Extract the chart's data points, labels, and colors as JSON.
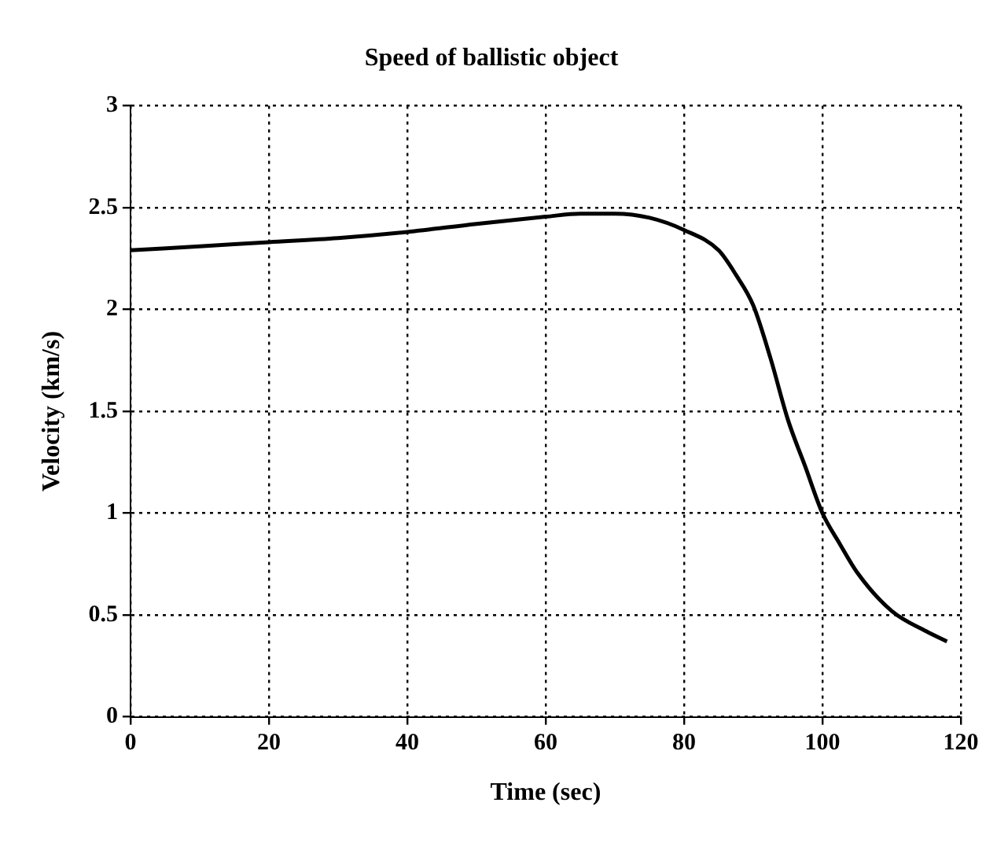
{
  "chart_data": {
    "type": "line",
    "title": "Speed of ballistic object",
    "xlabel": "Time (sec)",
    "ylabel": "Velocity (km/s)",
    "x": [
      0,
      10,
      20,
      30,
      40,
      50,
      60,
      65,
      70,
      75,
      80,
      85,
      87.5,
      90,
      92.5,
      95,
      97.5,
      100,
      102.5,
      105,
      110,
      115,
      118
    ],
    "series": [
      {
        "color": "#000000",
        "values": [
          2.29,
          2.31,
          2.33,
          2.35,
          2.38,
          2.42,
          2.455,
          2.47,
          2.47,
          2.45,
          2.39,
          2.29,
          2.17,
          2.02,
          1.76,
          1.46,
          1.23,
          1.0,
          0.85,
          0.71,
          0.52,
          0.42,
          0.37
        ]
      }
    ],
    "xlim": [
      0,
      120
    ],
    "xticks": [
      0,
      20,
      40,
      60,
      80,
      100,
      120
    ],
    "ylim": [
      0,
      3
    ],
    "yticks": [
      0,
      0.5,
      1,
      1.5,
      2,
      2.5,
      3
    ],
    "grid": true,
    "legend": false,
    "marker": "none",
    "line_style": "solid"
  }
}
